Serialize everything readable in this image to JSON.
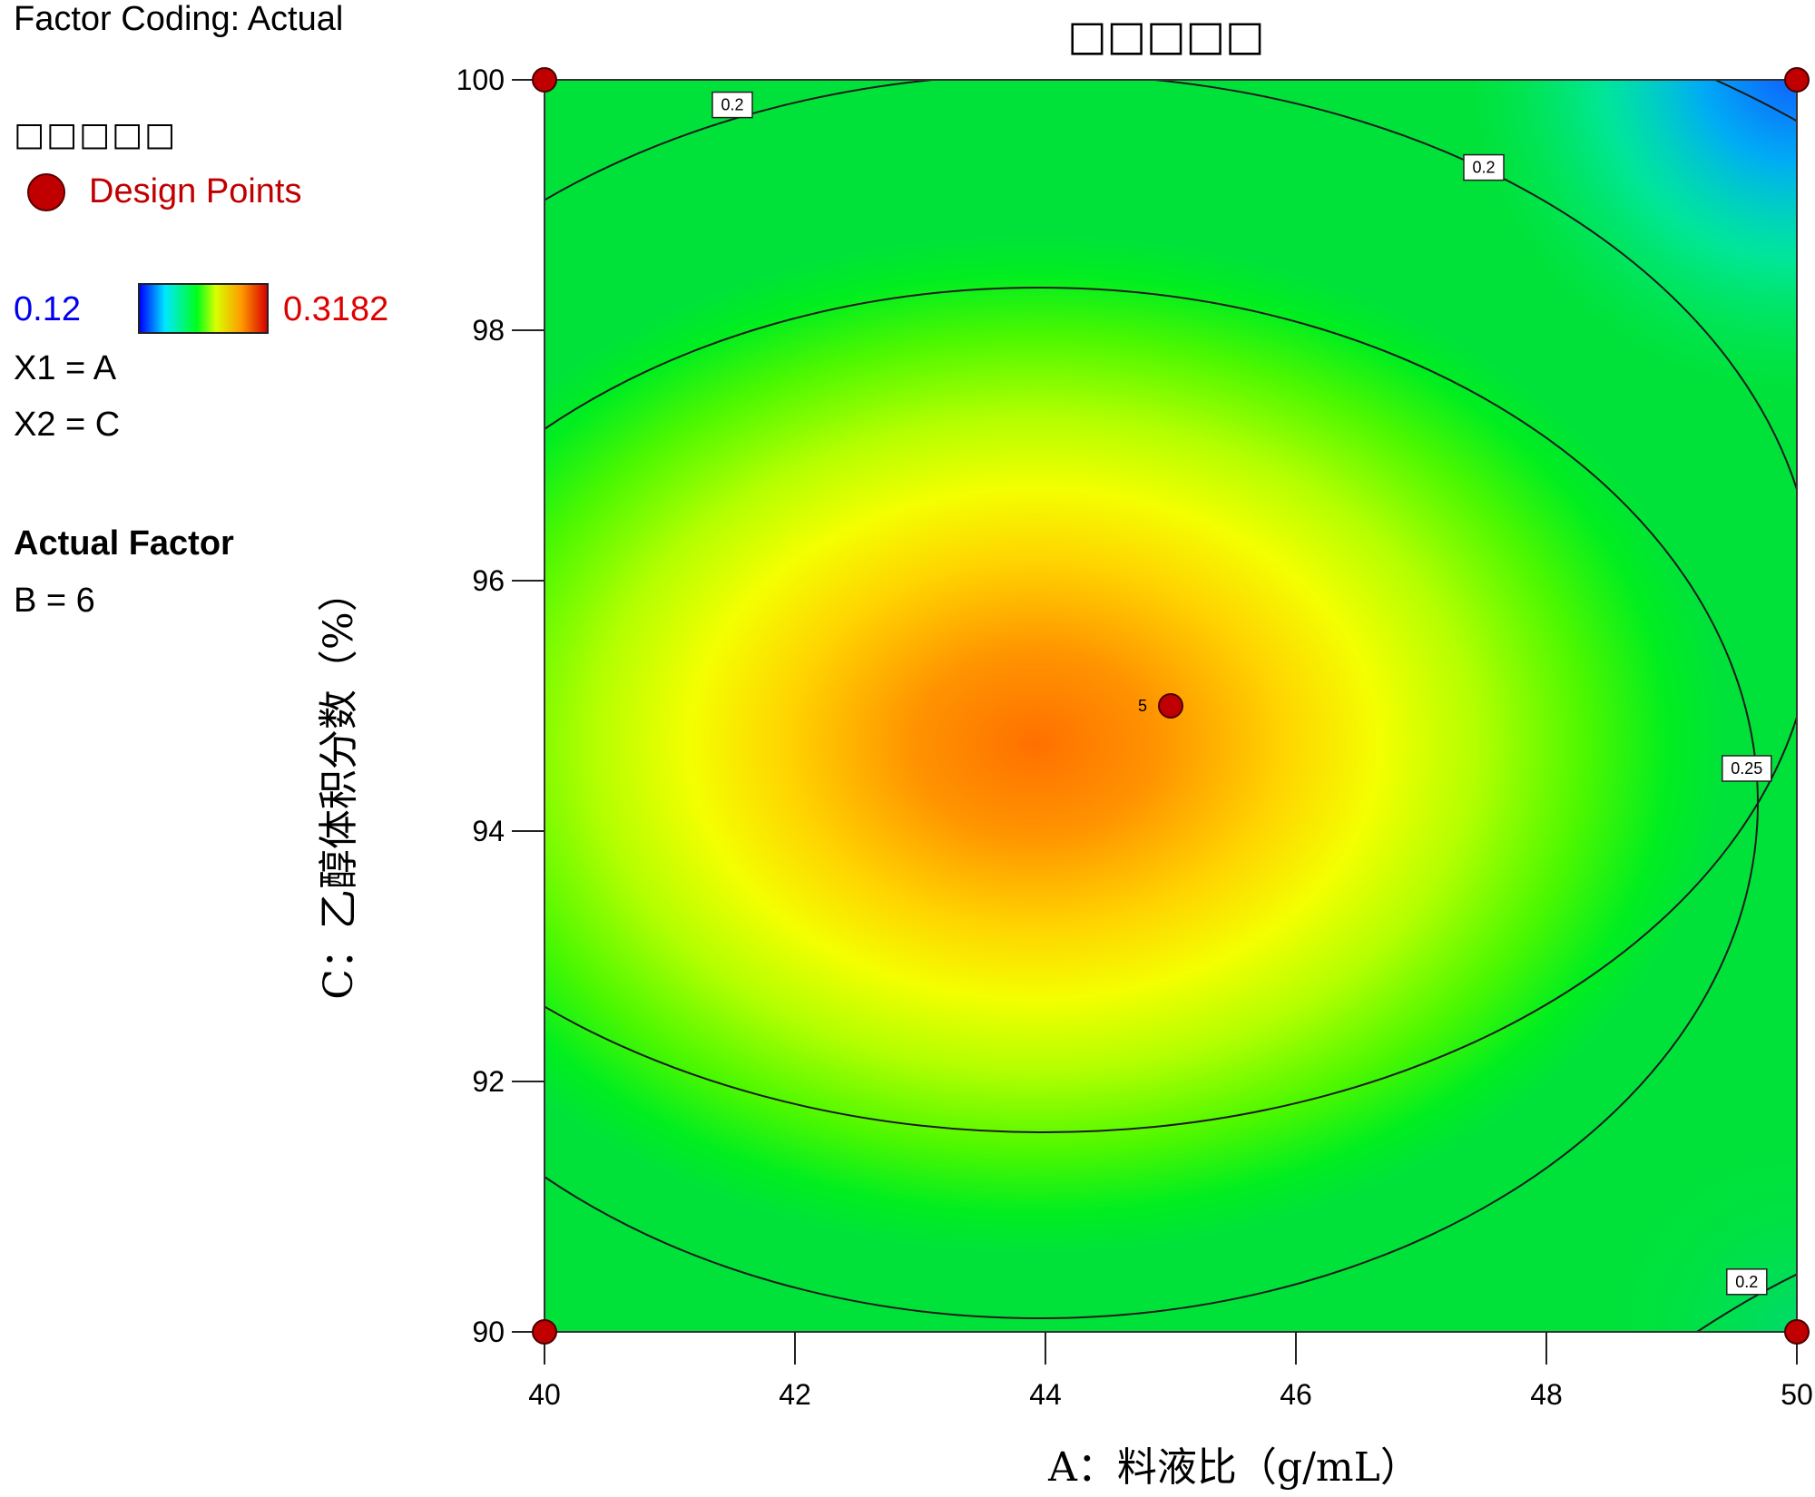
{
  "legend": {
    "factor_coding": "Factor Coding: Actual",
    "response_title": "□□□□□",
    "design_points_label": "Design Points",
    "color_min": "0.12",
    "color_max": "0.3182",
    "x1_mapping": "X1 = A",
    "x2_mapping": "X2 = C",
    "actual_factor_heading": "Actual Factor",
    "actual_factor_value": "B = 6"
  },
  "colors": {
    "design_point": "#c00000",
    "min_label": "#0000ee",
    "max_label": "#dd0000"
  },
  "chart_data": {
    "type": "heatmap",
    "subtype": "contour",
    "title": "□□□□□",
    "xlabel": "A：料液比（g/mL）",
    "ylabel": "C：乙醇体积分数（%）",
    "xlim": [
      40,
      50
    ],
    "ylim": [
      90,
      100
    ],
    "x_ticks": [
      "40",
      "42",
      "44",
      "46",
      "48",
      "50"
    ],
    "y_ticks": [
      "90",
      "92",
      "94",
      "96",
      "98",
      "100"
    ],
    "colorbar_range": [
      0.12,
      0.3182
    ],
    "colormap": [
      "#0000ff",
      "#00e8ff",
      "#00ff1c",
      "#d8ff00",
      "#ff9a00",
      "#d80000"
    ],
    "response_peak": {
      "x": 44.5,
      "y": 94.5
    },
    "contour_levels": [
      0.2,
      0.25
    ],
    "contour_labels": [
      {
        "text": "0.2",
        "x": 41.5,
        "y": 99.8
      },
      {
        "text": "0.2",
        "x": 47.5,
        "y": 99.3
      },
      {
        "text": "0.25",
        "x": 49.6,
        "y": 94.5
      },
      {
        "text": "0.2",
        "x": 49.6,
        "y": 90.4
      }
    ],
    "design_points": [
      {
        "x": 40,
        "y": 100
      },
      {
        "x": 50,
        "y": 100
      },
      {
        "x": 40,
        "y": 90
      },
      {
        "x": 50,
        "y": 90
      },
      {
        "x": 45,
        "y": 95,
        "label": "5"
      }
    ]
  }
}
